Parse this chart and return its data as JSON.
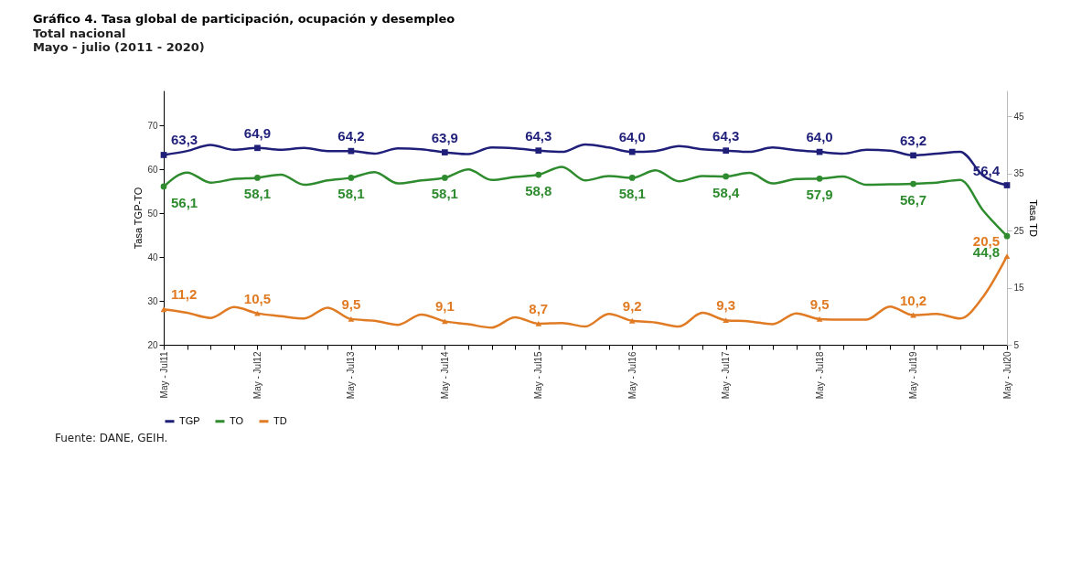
{
  "chart_data": {
    "type": "line",
    "title": "Gráfico 4. Tasa global de participación, ocupación y desempleo",
    "subtitle": "Total nacional\nMayo - julio (2011 - 2020)",
    "xlabel": null,
    "ylabel": "Tasa TGP-TO",
    "y2label": "Tasa TD",
    "categories": [
      "May - Jul11",
      null,
      null,
      null,
      "May - Jul12",
      null,
      null,
      null,
      "May - Jul13",
      null,
      null,
      null,
      "May - Jul14",
      null,
      null,
      null,
      "May - Jul15",
      null,
      null,
      null,
      "May - Jul16",
      null,
      null,
      null,
      "May - Jul17",
      null,
      null,
      null,
      "May - Jul18",
      null,
      null,
      null,
      "May - Jul19",
      null,
      null,
      null,
      "May - Jul20"
    ],
    "series": [
      {
        "name": "TGP",
        "color": "#1f1f7a",
        "values": [
          63.3,
          64.2,
          65.6,
          64.5,
          64.9,
          64.5,
          64.9,
          64.2,
          64.2,
          63.6,
          64.8,
          64.6,
          63.9,
          63.5,
          65.0,
          64.8,
          64.3,
          64.0,
          65.7,
          65.0,
          64.0,
          64.2,
          65.3,
          64.6,
          64.3,
          64.0,
          65.0,
          64.4,
          64.0,
          63.6,
          64.5,
          64.3,
          63.2,
          63.6,
          64.0,
          58.5,
          56.4
        ],
        "value_labels": [
          "63,3",
          null,
          null,
          null,
          "64,9",
          null,
          null,
          null,
          "64,2",
          null,
          null,
          null,
          "63,9",
          null,
          null,
          null,
          "64,3",
          null,
          null,
          null,
          "64,0",
          null,
          null,
          null,
          "64,3",
          null,
          null,
          null,
          "64,0",
          null,
          null,
          null,
          "63,2",
          null,
          null,
          null,
          "56,4"
        ]
      },
      {
        "name": "TO",
        "color": "#2e8b2e",
        "values": [
          56.1,
          59.3,
          57.0,
          57.8,
          58.1,
          58.8,
          56.5,
          57.5,
          58.1,
          59.4,
          56.8,
          57.5,
          58.1,
          60.0,
          57.6,
          58.3,
          58.8,
          60.6,
          57.5,
          58.5,
          58.1,
          59.8,
          57.3,
          58.5,
          58.4,
          59.2,
          56.8,
          57.8,
          57.9,
          58.4,
          56.5,
          56.6,
          56.7,
          57.0,
          57.6,
          50.5,
          44.8
        ],
        "value_labels": [
          "56,1",
          null,
          null,
          null,
          "58,1",
          null,
          null,
          null,
          "58,1",
          null,
          null,
          null,
          "58,1",
          null,
          null,
          null,
          "58,8",
          null,
          null,
          null,
          "58,1",
          null,
          null,
          null,
          "58,4",
          null,
          null,
          null,
          "57,9",
          null,
          null,
          null,
          "56,7",
          null,
          null,
          null,
          "44,8"
        ]
      },
      {
        "name": "TD",
        "color": "#e07b24",
        "axis": "y2",
        "values": [
          11.2,
          10.6,
          9.7,
          11.6,
          10.5,
          10.0,
          9.6,
          11.5,
          9.5,
          9.2,
          8.5,
          10.3,
          9.1,
          8.6,
          8.0,
          9.8,
          8.7,
          8.8,
          8.2,
          10.4,
          9.2,
          8.9,
          8.2,
          10.6,
          9.3,
          9.1,
          8.6,
          10.5,
          9.5,
          9.4,
          9.4,
          11.7,
          10.2,
          10.4,
          9.6,
          13.5,
          20.5
        ],
        "value_labels": [
          "11,2",
          null,
          null,
          null,
          "10,5",
          null,
          null,
          null,
          "9,5",
          null,
          null,
          null,
          "9,1",
          null,
          null,
          null,
          "8,7",
          null,
          null,
          null,
          "9,2",
          null,
          null,
          null,
          "9,3",
          null,
          null,
          null,
          "9,5",
          null,
          null,
          null,
          "10,2",
          null,
          null,
          null,
          "20,5"
        ]
      }
    ],
    "ylim": [
      20,
      78
    ],
    "yticks": [
      20,
      30,
      40,
      50,
      60,
      70
    ],
    "y2lim": [
      5,
      49.5
    ],
    "y2ticks": [
      5,
      15,
      25,
      35,
      45
    ],
    "grid": false,
    "legend": "bottom",
    "line_style": "solid",
    "annotations": [
      "Fuente: DANE, GEIH."
    ]
  }
}
